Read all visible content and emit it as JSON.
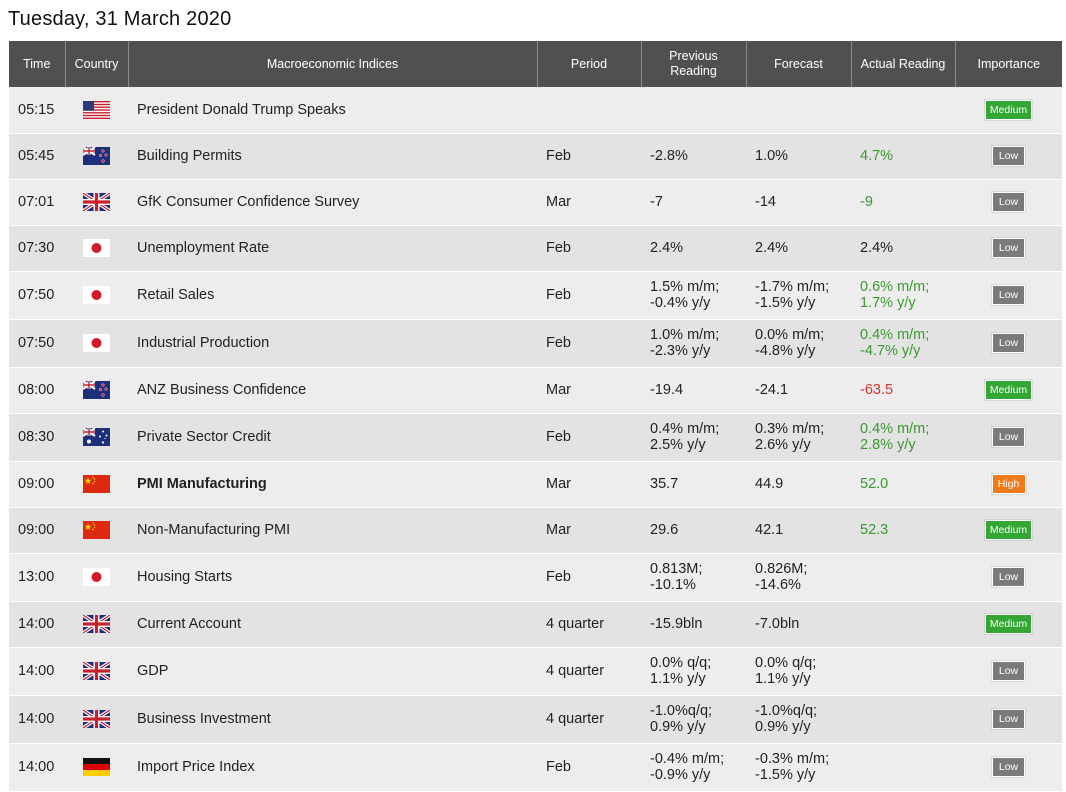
{
  "page": {
    "title": "Tuesday, 31 March 2020"
  },
  "columns": {
    "time": "Time",
    "country": "Country",
    "indices": "Macroeconomic Indices",
    "period": "Period",
    "previous_line1": "Previous",
    "previous_line2": "Reading",
    "forecast": "Forecast",
    "actual": "Actual Reading",
    "importance": "Importance"
  },
  "colors": {
    "header_bg": "#505050",
    "positive": "#3a9a2e",
    "negative": "#d9322e",
    "badge_low": "#7a7a7a",
    "badge_medium": "#34a634",
    "badge_high": "#f07a16"
  },
  "rows": [
    {
      "time": "05:15",
      "country": "us-flag-icon",
      "name": "President Donald Trump Speaks",
      "period": "",
      "previous": [
        "",
        ""
      ],
      "forecast": [
        "",
        ""
      ],
      "actual": [
        "",
        ""
      ],
      "actual_color": "",
      "importance": "Medium",
      "bold": false
    },
    {
      "time": "05:45",
      "country": "nz-flag-icon",
      "name": "Building Permits",
      "period": "Feb",
      "previous": [
        "-2.8%",
        ""
      ],
      "forecast": [
        "1.0%",
        ""
      ],
      "actual": [
        "4.7%",
        ""
      ],
      "actual_color": "green",
      "importance": "Low",
      "bold": false
    },
    {
      "time": "07:01",
      "country": "uk-flag-icon",
      "name": "GfK Consumer Confidence Survey",
      "period": "Mar",
      "previous": [
        "-7",
        ""
      ],
      "forecast": [
        "-14",
        ""
      ],
      "actual": [
        "-9",
        ""
      ],
      "actual_color": "green",
      "importance": "Low",
      "bold": false
    },
    {
      "time": "07:30",
      "country": "jp-flag-icon",
      "name": "Unemployment Rate",
      "period": "Feb",
      "previous": [
        "2.4%",
        ""
      ],
      "forecast": [
        "2.4%",
        ""
      ],
      "actual": [
        "2.4%",
        ""
      ],
      "actual_color": "",
      "importance": "Low",
      "bold": false
    },
    {
      "time": "07:50",
      "country": "jp-flag-icon",
      "name": "Retail Sales",
      "period": "Feb",
      "previous": [
        "1.5% m/m;",
        "-0.4% y/y"
      ],
      "forecast": [
        "-1.7% m/m;",
        "-1.5% y/y"
      ],
      "actual": [
        "0.6% m/m;",
        "1.7% y/y"
      ],
      "actual_color": "green",
      "importance": "Low",
      "bold": false
    },
    {
      "time": "07:50",
      "country": "jp-flag-icon",
      "name": "Industrial Production",
      "period": "Feb",
      "previous": [
        "1.0% m/m;",
        "-2.3% y/y"
      ],
      "forecast": [
        "0.0% m/m;",
        "-4.8% y/y"
      ],
      "actual": [
        "0.4% m/m;",
        "-4.7% y/y"
      ],
      "actual_color": "green",
      "importance": "Low",
      "bold": false
    },
    {
      "time": "08:00",
      "country": "nz-flag-icon",
      "name": "ANZ Business Confidence",
      "period": "Mar",
      "previous": [
        "-19.4",
        ""
      ],
      "forecast": [
        "-24.1",
        ""
      ],
      "actual": [
        "-63.5",
        ""
      ],
      "actual_color": "red",
      "importance": "Medium",
      "bold": false
    },
    {
      "time": "08:30",
      "country": "au-flag-icon",
      "name": "Private Sector Credit",
      "period": "Feb",
      "previous": [
        "0.4% m/m;",
        "2.5% y/y"
      ],
      "forecast": [
        "0.3% m/m;",
        "2.6% y/y"
      ],
      "actual": [
        "0.4% m/m;",
        "2.8% y/y"
      ],
      "actual_color": "green",
      "importance": "Low",
      "bold": false
    },
    {
      "time": "09:00",
      "country": "cn-flag-icon",
      "name": "PMI Manufacturing",
      "period": "Mar",
      "previous": [
        "35.7",
        ""
      ],
      "forecast": [
        "44.9",
        ""
      ],
      "actual": [
        "52.0",
        ""
      ],
      "actual_color": "green",
      "importance": "High",
      "bold": true
    },
    {
      "time": "09:00",
      "country": "cn-flag-icon",
      "name": "Non-Manufacturing PMI",
      "period": "Mar",
      "previous": [
        "29.6",
        ""
      ],
      "forecast": [
        "42.1",
        ""
      ],
      "actual": [
        "52.3",
        ""
      ],
      "actual_color": "green",
      "importance": "Medium",
      "bold": false
    },
    {
      "time": "13:00",
      "country": "jp-flag-icon",
      "name": "Housing Starts",
      "period": "Feb",
      "previous": [
        "0.813M;",
        "-10.1%"
      ],
      "forecast": [
        "0.826M;",
        "-14.6%"
      ],
      "actual": [
        "",
        ""
      ],
      "actual_color": "",
      "importance": "Low",
      "bold": false
    },
    {
      "time": "14:00",
      "country": "uk-flag-icon",
      "name": "Current Account",
      "period": "4 quarter",
      "previous": [
        "-15.9bln",
        ""
      ],
      "forecast": [
        "-7.0bln",
        ""
      ],
      "actual": [
        "",
        ""
      ],
      "actual_color": "",
      "importance": "Medium",
      "bold": false
    },
    {
      "time": "14:00",
      "country": "uk-flag-icon",
      "name": "GDP",
      "period": "4 quarter",
      "previous": [
        "0.0% q/q;",
        "1.1% y/y"
      ],
      "forecast": [
        "0.0% q/q;",
        "1.1% y/y"
      ],
      "actual": [
        "",
        ""
      ],
      "actual_color": "",
      "importance": "Low",
      "bold": false
    },
    {
      "time": "14:00",
      "country": "uk-flag-icon",
      "name": "Business Investment",
      "period": "4 quarter",
      "previous": [
        "-1.0%q/q;",
        "0.9% y/y"
      ],
      "forecast": [
        "-1.0%q/q;",
        "0.9% y/y"
      ],
      "actual": [
        "",
        ""
      ],
      "actual_color": "",
      "importance": "Low",
      "bold": false
    },
    {
      "time": "14:00",
      "country": "de-flag-icon",
      "name": "Import Price Index",
      "period": "Feb",
      "previous": [
        "-0.4% m/m;",
        "-0.9% y/y"
      ],
      "forecast": [
        "-0.3% m/m;",
        "-1.5% y/y"
      ],
      "actual": [
        "",
        ""
      ],
      "actual_color": "",
      "importance": "Low",
      "bold": false
    }
  ]
}
